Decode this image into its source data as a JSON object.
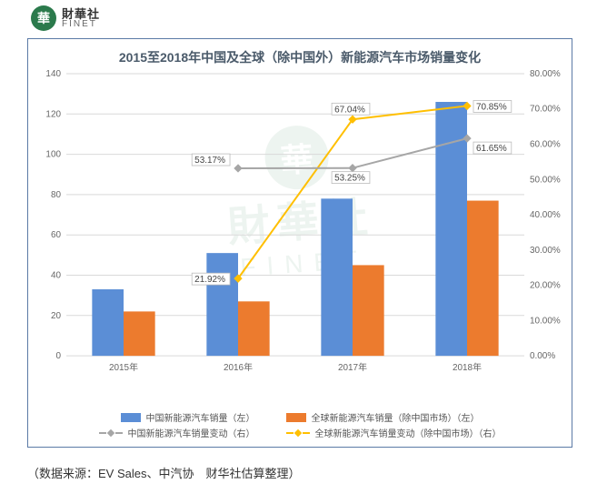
{
  "logo": {
    "badge_char": "華",
    "cn": "財華社",
    "en": "FINET"
  },
  "watermark": {
    "badge_char": "華",
    "cn": "財華社",
    "en": "FINET"
  },
  "chart": {
    "type": "bar+line-dual-axis",
    "title": "2015至2018年中国及全球（除中国外）新能源汽车市场销量变化",
    "background_color": "#ffffff",
    "border_color": "#5b7aa6",
    "grid_color": "#d9d9d9",
    "categories": [
      "2015年",
      "2016年",
      "2017年",
      "2018年"
    ],
    "left_axis": {
      "min": 0,
      "max": 140,
      "step": 20
    },
    "right_axis": {
      "min": 0,
      "max": 80,
      "step": 10,
      "suffix": "%",
      "decimals": 2
    },
    "series": {
      "bar_a": {
        "label": "中国新能源汽车销量（左）",
        "color": "#5b8ed6",
        "values": [
          33,
          51,
          78,
          126
        ]
      },
      "bar_b": {
        "label": "全球新能源汽车销量（除中国市场）（左）",
        "color": "#ec7b2e",
        "values": [
          22,
          27,
          45,
          77
        ]
      },
      "line_a": {
        "label": "中国新能源汽车销量变动（右）",
        "color": "#a6a6a6",
        "marker": "diamond",
        "points": [
          {
            "x": 1,
            "v": 53.17
          },
          {
            "x": 2,
            "v": 53.25
          },
          {
            "x": 3,
            "v": 61.65
          }
        ],
        "labels": [
          "53.17%",
          "53.25%",
          "61.65%"
        ]
      },
      "line_b": {
        "label": "全球新能源汽车销量变动（除中国市场）（右）",
        "color": "#ffbf00",
        "marker": "diamond",
        "points": [
          {
            "x": 1,
            "v": 21.92
          },
          {
            "x": 2,
            "v": 67.04
          },
          {
            "x": 3,
            "v": 70.85
          }
        ],
        "labels": [
          "21.92%",
          "67.04%",
          "70.85%"
        ]
      }
    },
    "bar_group_width": 0.55,
    "title_fontsize": 14,
    "axis_fontsize": 10
  },
  "source": "（数据来源：EV Sales、中汽协　财华社估算整理）"
}
